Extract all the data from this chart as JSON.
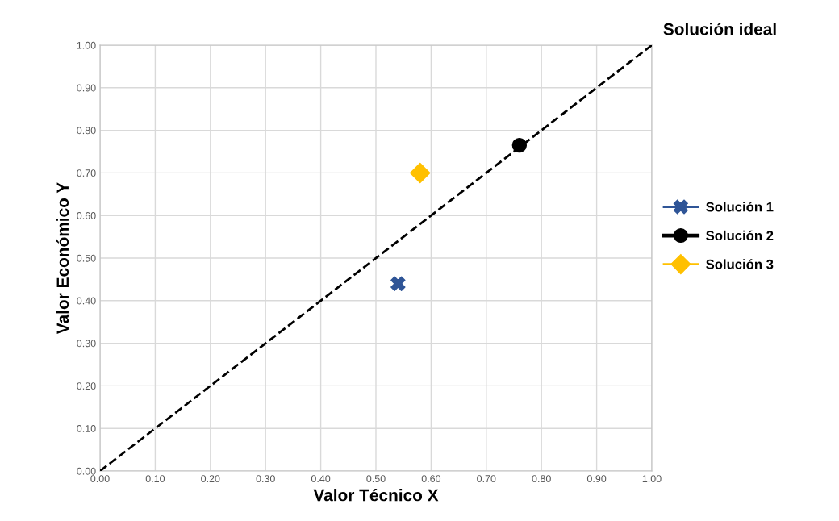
{
  "chart_data": {
    "type": "scatter",
    "xlabel": "Valor Técnico X",
    "ylabel": "Valor Económico Y",
    "series": [
      {
        "name": "Solución ideal",
        "type": "line",
        "line_style": "dashed",
        "marker": "none",
        "color": "#000000",
        "x": [
          0,
          1
        ],
        "values": [
          0,
          1
        ]
      },
      {
        "name": "Solución 1",
        "marker": "cross",
        "color": "#2f5597",
        "x": [
          0.54
        ],
        "values": [
          0.44
        ]
      },
      {
        "name": "Solución 2",
        "marker": "circle",
        "color": "#000000",
        "x": [
          0.76
        ],
        "values": [
          0.765
        ]
      },
      {
        "name": "Solución 3",
        "marker": "diamond",
        "color": "#ffc000",
        "x": [
          0.58
        ],
        "values": [
          0.7
        ]
      }
    ],
    "xlim": [
      0,
      1
    ],
    "ylim": [
      0,
      1
    ],
    "xticks": [
      {
        "value": 0,
        "label": "0.00"
      },
      {
        "value": 0.1,
        "label": "0.10"
      },
      {
        "value": 0.2,
        "label": "0.20"
      },
      {
        "value": 0.3,
        "label": "0.30"
      },
      {
        "value": 0.4,
        "label": "0.40"
      },
      {
        "value": 0.5,
        "label": "0.50"
      },
      {
        "value": 0.6,
        "label": "0.60"
      },
      {
        "value": 0.7,
        "label": "0.70"
      },
      {
        "value": 0.8,
        "label": "0.80"
      },
      {
        "value": 0.9,
        "label": "0.90"
      },
      {
        "value": 1,
        "label": "1.00"
      }
    ],
    "yticks": [
      {
        "value": 0,
        "label": "0.00"
      },
      {
        "value": 0.1,
        "label": "0.10"
      },
      {
        "value": 0.2,
        "label": "0.20"
      },
      {
        "value": 0.3,
        "label": "0.30"
      },
      {
        "value": 0.4,
        "label": "0.40"
      },
      {
        "value": 0.5,
        "label": "0.50"
      },
      {
        "value": 0.6,
        "label": "0.60"
      },
      {
        "value": 0.7,
        "label": "0.70"
      },
      {
        "value": 0.8,
        "label": "0.80"
      },
      {
        "value": 0.9,
        "label": "0.90"
      },
      {
        "value": 1,
        "label": "1.00"
      }
    ],
    "grid": true,
    "legend": "right"
  }
}
